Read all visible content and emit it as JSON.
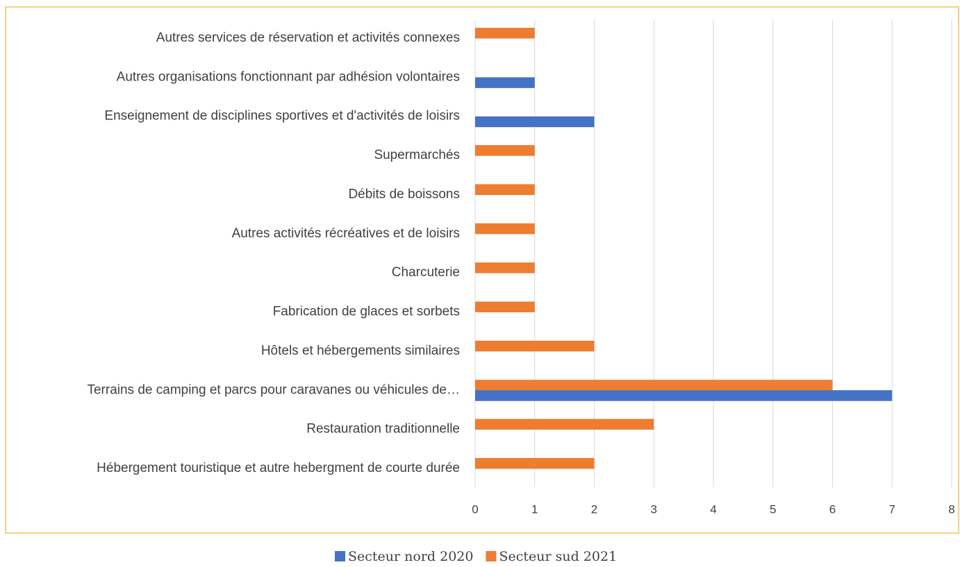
{
  "chart_data": {
    "type": "hbar",
    "categories": [
      "Autres services de réservation et activités connexes",
      "Autres organisations fonctionnant par adhésion volontaires",
      "Enseignement de disciplines sportives et d'activités de loisirs",
      "Supermarchés",
      "Débits de boissons",
      "Autres activités récréatives et de loisirs",
      "Charcuterie ",
      "Fabrication de glaces et sorbets",
      "Hôtels et hébergements similaires",
      "Terrains de camping et parcs pour caravanes ou véhicules de…",
      "Restauration traditionnelle",
      "Hébergement touristique et autre hebergment de courte durée"
    ],
    "series": [
      {
        "name": "Secteur nord 2020",
        "color": "#4472c4",
        "values": [
          null,
          1,
          2,
          null,
          null,
          null,
          null,
          null,
          null,
          7,
          null,
          null
        ]
      },
      {
        "name": "Secteur sud 2021",
        "color": "#ed7d31",
        "values": [
          1,
          null,
          null,
          1,
          1,
          1,
          1,
          1,
          2,
          6,
          3,
          2
        ]
      }
    ],
    "xlim": [
      0,
      8
    ],
    "xticks": [
      0,
      1,
      2,
      3,
      4,
      5,
      6,
      7,
      8
    ],
    "grid": true
  }
}
